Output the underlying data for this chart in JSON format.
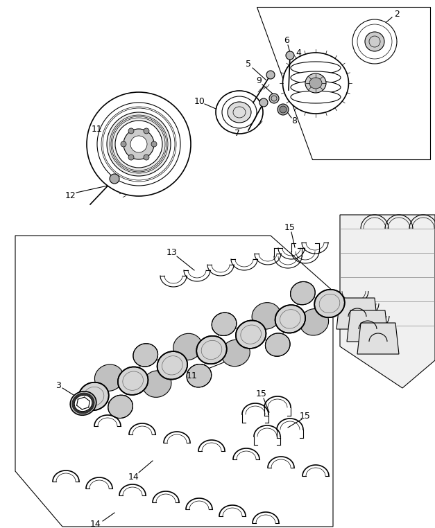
{
  "bg_color": "#ffffff",
  "line_color": "#000000",
  "fig_width": 6.27,
  "fig_height": 7.62,
  "dpi": 100
}
